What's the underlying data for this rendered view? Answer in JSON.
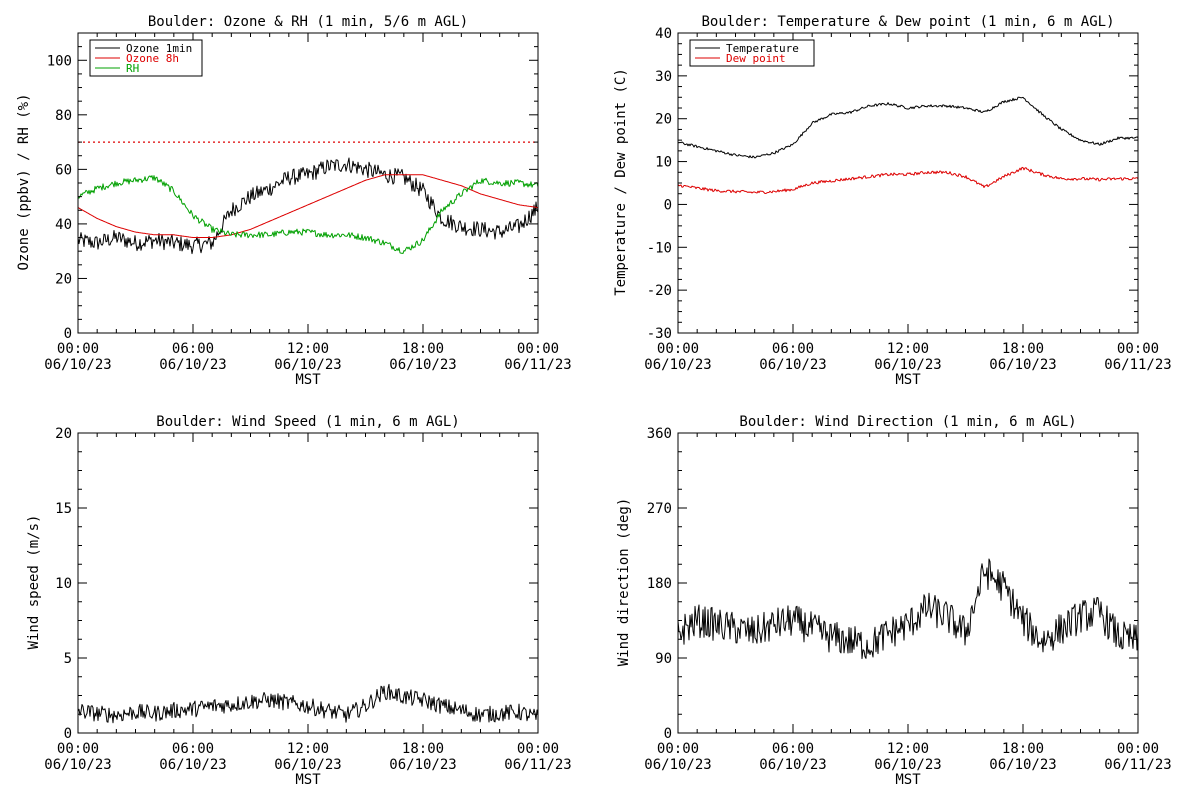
{
  "chart_data": [
    {
      "type": "line",
      "title": "Boulder: Ozone & RH (1 min, 5/6 m AGL)",
      "xlabel": "",
      "ylabel": "Ozone (ppbv) / RH (%)",
      "xlim": [
        "06/10/23 00:00",
        "06/11/23 00:00"
      ],
      "ylim": [
        0,
        110
      ],
      "x_ticks": [
        {
          "time": "00:00",
          "date": "06/10/23",
          "hour": 0
        },
        {
          "time": "06:00",
          "date": "06/10/23",
          "hour": 6
        },
        {
          "time": "12:00",
          "date": "06/10/23",
          "hour": 12
        },
        {
          "time": "18:00",
          "date": "06/10/23",
          "hour": 18
        },
        {
          "time": "00:00",
          "date": "06/11/23",
          "hour": 24
        }
      ],
      "y_ticks": [
        0,
        20,
        40,
        60,
        80,
        100
      ],
      "legend_position": "top-left",
      "reference_line": {
        "y": 70,
        "color": "#dd0000",
        "style": "dotted"
      },
      "x_hours": [
        0,
        1,
        2,
        3,
        4,
        5,
        6,
        7,
        8,
        9,
        10,
        11,
        12,
        13,
        14,
        15,
        16,
        17,
        18,
        19,
        20,
        21,
        22,
        23,
        24
      ],
      "series": [
        {
          "name": "Ozone 1min",
          "color": "#000000",
          "noise": 3,
          "values": [
            34,
            33,
            35,
            33,
            34,
            33,
            32,
            33,
            45,
            50,
            53,
            57,
            58,
            61,
            62,
            60,
            58,
            57,
            52,
            42,
            39,
            38,
            37,
            39,
            46
          ]
        },
        {
          "name": "Ozone 8h",
          "color": "#dd0000",
          "noise": 0,
          "values": [
            46,
            42,
            39,
            37,
            36,
            36,
            35,
            35,
            36,
            38,
            41,
            44,
            47,
            50,
            53,
            56,
            58,
            58,
            58,
            56,
            54,
            51,
            49,
            47,
            46
          ]
        },
        {
          "name": "RH",
          "color": "#00a000",
          "noise": 1.2,
          "values": [
            50,
            53,
            55,
            56,
            57,
            52,
            43,
            38,
            36,
            36,
            36,
            37,
            37,
            36,
            36,
            35,
            33,
            30,
            34,
            45,
            51,
            56,
            55,
            55,
            54
          ]
        }
      ]
    },
    {
      "type": "line",
      "title": "Boulder: Temperature & Dew point (1 min, 6 m AGL)",
      "xlabel": "",
      "ylabel": "Temperature / Dew point (C)",
      "xlim": [
        "06/10/23 00:00",
        "06/11/23 00:00"
      ],
      "ylim": [
        -30,
        40
      ],
      "x_ticks": [
        {
          "time": "00:00",
          "date": "06/10/23",
          "hour": 0
        },
        {
          "time": "06:00",
          "date": "06/10/23",
          "hour": 6
        },
        {
          "time": "12:00",
          "date": "06/10/23",
          "hour": 12
        },
        {
          "time": "18:00",
          "date": "06/10/23",
          "hour": 18
        },
        {
          "time": "00:00",
          "date": "06/11/23",
          "hour": 24
        }
      ],
      "y_ticks": [
        -30,
        -20,
        -10,
        0,
        10,
        20,
        30,
        40
      ],
      "legend_position": "top-left",
      "x_hours": [
        0,
        1,
        2,
        3,
        4,
        5,
        6,
        7,
        8,
        9,
        10,
        11,
        12,
        13,
        14,
        15,
        16,
        17,
        18,
        19,
        20,
        21,
        22,
        23,
        24
      ],
      "series": [
        {
          "name": "Temperature",
          "color": "#000000",
          "noise": 0.3,
          "values": [
            14.5,
            13.5,
            12.5,
            11.5,
            11,
            12,
            14,
            19,
            21,
            21.5,
            23,
            23.5,
            22.5,
            23,
            23,
            22.5,
            21.5,
            24,
            25,
            21,
            17.5,
            15,
            14,
            15.5,
            15.5
          ]
        },
        {
          "name": "Dew point",
          "color": "#dd0000",
          "noise": 0.35,
          "values": [
            4.5,
            3.8,
            3.2,
            3,
            2.8,
            3,
            3.5,
            5,
            5.5,
            6,
            6.5,
            7,
            7,
            7.5,
            7.5,
            6.5,
            4,
            6.5,
            8.5,
            7,
            6,
            6,
            5.8,
            6,
            6
          ]
        }
      ]
    },
    {
      "type": "line",
      "title": "Boulder: Wind Speed (1 min, 6 m AGL)",
      "xlabel": "",
      "ylabel": "Wind speed (m/s)",
      "xlim": [
        "06/10/23 00:00",
        "06/11/23 00:00"
      ],
      "ylim": [
        0,
        20
      ],
      "x_ticks": [
        {
          "time": "00:00",
          "date": "06/10/23",
          "hour": 0
        },
        {
          "time": "06:00",
          "date": "06/10/23",
          "hour": 6
        },
        {
          "time": "12:00",
          "date": "06/10/23",
          "hour": 12
        },
        {
          "time": "18:00",
          "date": "06/10/23",
          "hour": 18
        },
        {
          "time": "00:00",
          "date": "06/11/23",
          "hour": 24
        }
      ],
      "y_ticks": [
        0,
        5,
        10,
        15,
        20
      ],
      "legend_position": "none",
      "x_hours": [
        0,
        1,
        2,
        3,
        4,
        5,
        6,
        7,
        8,
        9,
        10,
        11,
        12,
        13,
        14,
        15,
        16,
        17,
        18,
        19,
        20,
        21,
        22,
        23,
        24
      ],
      "series": [
        {
          "name": "",
          "color": "#000000",
          "noise": 0.55,
          "values": [
            1.5,
            1.3,
            1.2,
            1.4,
            1.3,
            1.5,
            1.6,
            1.8,
            1.9,
            2.1,
            2.2,
            2,
            1.8,
            1.5,
            1.2,
            1.8,
            2.8,
            2.4,
            2.2,
            1.8,
            1.5,
            1.2,
            1.3,
            1.4,
            1
          ]
        }
      ]
    },
    {
      "type": "line",
      "title": "Boulder: Wind Direction (1 min, 6 m AGL)",
      "xlabel": "",
      "ylabel": "Wind direction (deg)",
      "xlim": [
        "06/10/23 00:00",
        "06/11/23 00:00"
      ],
      "ylim": [
        0,
        360
      ],
      "x_ticks": [
        {
          "time": "00:00",
          "date": "06/10/23",
          "hour": 0
        },
        {
          "time": "06:00",
          "date": "06/10/23",
          "hour": 6
        },
        {
          "time": "12:00",
          "date": "06/10/23",
          "hour": 12
        },
        {
          "time": "18:00",
          "date": "06/10/23",
          "hour": 18
        },
        {
          "time": "00:00",
          "date": "06/11/23",
          "hour": 24
        }
      ],
      "y_ticks": [
        0,
        90,
        180,
        270,
        360
      ],
      "legend_position": "none",
      "x_hours": [
        0,
        1,
        2,
        3,
        4,
        5,
        6,
        7,
        8,
        9,
        10,
        11,
        12,
        13,
        14,
        15,
        16,
        17,
        18,
        19,
        20,
        21,
        22,
        23,
        24
      ],
      "series": [
        {
          "name": "",
          "color": "#000000",
          "noise": 20,
          "values": [
            120,
            135,
            130,
            125,
            120,
            130,
            135,
            125,
            115,
            110,
            105,
            120,
            130,
            150,
            140,
            120,
            195,
            175,
            135,
            110,
            125,
            140,
            145,
            115,
            110
          ]
        }
      ]
    }
  ],
  "axis": {
    "x_caption": "MST"
  }
}
